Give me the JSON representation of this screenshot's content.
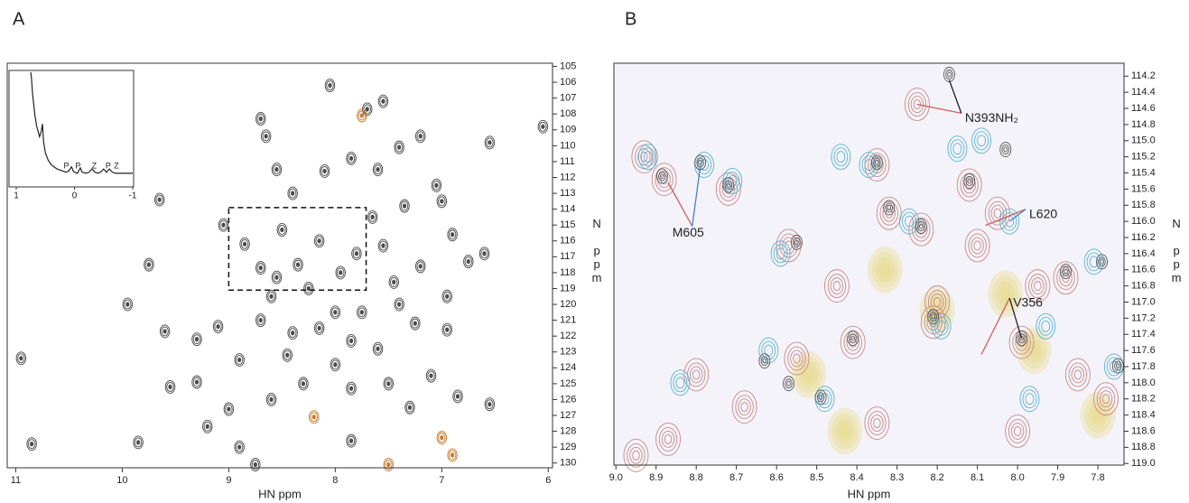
{
  "chart_data": [
    {
      "type": "contour",
      "panel_label": "A",
      "x_label": "HN ppm",
      "y_label": "N ppm",
      "xlim": [
        11.08,
        5.96
      ],
      "xticks": [
        11,
        10,
        9,
        8,
        7,
        6
      ],
      "ylim": [
        104.8,
        130.3
      ],
      "yticks": [
        105,
        106,
        107,
        108,
        109,
        110,
        111,
        112,
        113,
        114,
        115,
        116,
        117,
        118,
        119,
        120,
        121,
        122,
        123,
        124,
        125,
        126,
        127,
        128,
        129,
        130
      ],
      "series": [
        {
          "color": "#4a4a4a",
          "x": [
            10.85,
            10.95,
            9.65,
            9.75,
            9.95,
            9.6,
            9.55,
            9.3,
            9.3,
            9.1,
            9.0,
            9.2,
            8.9,
            9.85,
            9.05,
            8.85,
            8.7,
            8.6,
            8.45,
            8.3,
            8.15,
            8.0,
            7.85,
            7.75,
            7.6,
            7.45,
            7.25,
            7.1,
            6.85,
            6.95,
            6.75,
            6.9,
            7.0,
            6.6,
            6.95,
            7.3,
            6.55,
            7.7,
            8.05,
            8.7,
            8.65,
            8.55,
            8.4,
            8.1,
            7.85,
            7.6,
            7.4,
            7.2,
            7.05,
            7.35,
            6.55,
            8.15,
            8.35,
            8.25,
            7.95,
            7.8,
            8.5,
            8.55,
            7.55,
            7.65,
            7.4,
            7.2,
            8.7,
            8.4,
            8.0,
            7.85,
            8.9,
            8.6,
            7.5,
            6.05,
            7.55,
            7.85,
            8.75
          ],
          "values": [
            128.8,
            123.4,
            113.4,
            117.5,
            120,
            121.7,
            125.2,
            124.9,
            122.2,
            121.4,
            126.6,
            127.7,
            129,
            128.7,
            115,
            116.2,
            117.7,
            119.5,
            123.2,
            125,
            121.5,
            123.8,
            125.3,
            120.5,
            122.8,
            118.6,
            121.2,
            124.5,
            125.8,
            119.5,
            117.3,
            115.6,
            113.5,
            116.8,
            121.6,
            126.5,
            126.3,
            107.7,
            106.2,
            108.3,
            109.4,
            111.5,
            113,
            111.6,
            110.8,
            111.5,
            110.1,
            109.4,
            112.5,
            113.8,
            109.8,
            116,
            117.5,
            119,
            118,
            116.8,
            115.3,
            118.3,
            116.3,
            114.5,
            120,
            117.6,
            121,
            121.8,
            120.5,
            122.3,
            123.5,
            126,
            125,
            108.8,
            107.2,
            128.6,
            130.1
          ]
        },
        {
          "color": "#c8792a",
          "x": [
            7.75,
            8.2,
            7.0,
            6.9,
            7.5
          ],
          "values": [
            108.1,
            127.1,
            128.4,
            129.5,
            130.1
          ]
        }
      ],
      "zoom_box": {
        "x": [
          9.0,
          7.71
        ],
        "y": [
          113.9,
          119.1
        ]
      },
      "inset": {
        "xlim": [
          1.0,
          -1.0
        ],
        "xticks": [
          1,
          0,
          -1
        ],
        "ylim": [
          0,
          100
        ],
        "x": [
          0.75,
          0.74,
          0.73,
          0.72,
          0.7,
          0.68,
          0.65,
          0.6,
          0.57,
          0.55,
          0.53,
          0.5,
          0.45,
          0.4,
          0.35,
          0.3,
          0.25,
          0.2,
          0.15,
          0.1,
          0.05,
          0.02,
          0,
          -0.05,
          -0.1,
          -0.13,
          -0.2,
          -0.25,
          -0.3,
          -0.35,
          -0.4,
          -0.45,
          -0.5,
          -0.55,
          -0.6,
          -0.65,
          -0.7,
          -0.8,
          -0.9,
          -1.0
        ],
        "values": [
          100,
          95,
          88,
          80,
          70,
          60,
          50,
          40,
          45,
          52,
          35,
          25,
          18,
          14,
          12,
          10,
          9,
          8,
          7,
          8,
          12,
          8,
          7,
          6,
          11,
          7,
          6,
          7,
          10,
          7,
          6,
          7,
          10,
          7,
          10,
          7,
          6,
          6,
          6,
          6
        ],
        "peak_labels": [
          {
            "x": 0.14,
            "label": "P"
          },
          {
            "x": -0.06,
            "label": "P"
          },
          {
            "x": -0.34,
            "label": "Z"
          },
          {
            "x": -0.58,
            "label": "P"
          },
          {
            "x": -0.72,
            "label": "Z"
          }
        ]
      }
    },
    {
      "type": "contour",
      "panel_label": "B",
      "x_label": "HN ppm",
      "y_label": "N ppm",
      "xlim": [
        9.005,
        7.735
      ],
      "xticks": [
        {
          "value": 9.0,
          "label": "9.0"
        },
        8.9,
        8.8,
        8.7,
        8.6,
        8.5,
        8.4,
        8.3,
        8.2,
        8.1,
        {
          "value": 8.0,
          "label": "8.0"
        },
        7.9,
        7.8
      ],
      "ylim": [
        114.04,
        119.02
      ],
      "yticks": [
        114.2,
        114.4,
        114.6,
        114.8,
        {
          "value": 115,
          "label": "115.0"
        },
        115.2,
        115.4,
        115.6,
        115.8,
        {
          "value": 116,
          "label": "116.0"
        },
        116.2,
        116.4,
        116.6,
        116.8,
        {
          "value": 117,
          "label": "117.0"
        },
        117.2,
        117.4,
        117.6,
        117.8,
        {
          "value": 118,
          "label": "118.0"
        },
        118.2,
        118.4,
        118.6,
        118.8,
        {
          "value": 119,
          "label": "119.0"
        }
      ],
      "series": [
        {
          "color": "#e8d98a",
          "x": [
            8.33,
            8.2,
            8.03,
            7.96,
            7.8,
            8.52,
            8.43
          ],
          "values": [
            116.6,
            117.1,
            116.9,
            117.6,
            118.4,
            117.9,
            118.6
          ]
        },
        {
          "color": "#c98a8a",
          "x": [
            8.25,
            8.93,
            8.8,
            8.68,
            8.45,
            8.2,
            8.1,
            8.05,
            7.95,
            7.85,
            7.78,
            8.0,
            8.35,
            8.55,
            8.87,
            8.95,
            8.88,
            8.72,
            8.57,
            8.41,
            8.35,
            8.12,
            8.24,
            7.99,
            8.21,
            7.88,
            8.32
          ],
          "values": [
            114.55,
            115.2,
            117.9,
            118.3,
            116.8,
            117.0,
            116.3,
            115.9,
            116.8,
            117.9,
            118.2,
            118.6,
            118.5,
            117.7,
            118.7,
            118.9,
            115.48,
            115.6,
            116.3,
            117.5,
            115.3,
            115.55,
            116.1,
            117.5,
            117.25,
            116.7,
            115.9
          ]
        },
        {
          "color": "#5ab4d0",
          "x": [
            8.92,
            8.78,
            8.71,
            8.59,
            8.48,
            8.37,
            8.15,
            8.09,
            8.02,
            7.93,
            7.81,
            7.76,
            8.44,
            8.62,
            8.84,
            8.27,
            8.19,
            7.97
          ],
          "values": [
            115.2,
            115.3,
            115.5,
            116.4,
            118.2,
            115.3,
            115.1,
            115.0,
            116.0,
            117.3,
            116.5,
            117.8,
            115.2,
            117.6,
            118.0,
            116.0,
            117.3,
            118.2
          ]
        },
        {
          "color": "#555555",
          "x": [
            8.885,
            8.79,
            8.72,
            8.55,
            8.57,
            8.49,
            8.63,
            8.41,
            8.35,
            8.12,
            8.24,
            7.99,
            8.21,
            7.75,
            7.79,
            7.88,
            8.17,
            8.32,
            8.03
          ],
          "values": [
            115.44,
            115.27,
            115.55,
            116.26,
            118.01,
            118.18,
            117.73,
            117.45,
            115.27,
            115.5,
            116.06,
            117.45,
            117.18,
            117.79,
            116.5,
            116.62,
            114.18,
            115.83,
            115.11
          ]
        }
      ],
      "annotations": [
        {
          "text": "N393NH₂",
          "x": 8.14,
          "y": 114.66,
          "pointers": [
            {
              "x": 8.25,
              "y": 114.55,
              "color": "#d0605a"
            },
            {
              "x": 8.17,
              "y": 114.25,
              "color": "#222222"
            }
          ]
        },
        {
          "text": "M605",
          "x": 8.81,
          "y": 116.06,
          "pointers": [
            {
              "x": 8.87,
              "y": 115.52,
              "color": "#d0605a"
            },
            {
              "x": 8.79,
              "y": 115.32,
              "color": "#4a7fd0"
            }
          ]
        },
        {
          "text": "L620",
          "x": 7.98,
          "y": 115.85,
          "pointers": [
            {
              "x": 8.08,
              "y": 116.05,
              "color": "#d0605a"
            },
            {
              "x": 8.02,
              "y": 116.0,
              "color": "#4a7fd0"
            }
          ]
        },
        {
          "text": "V356",
          "x": 8.02,
          "y": 116.95,
          "pointers": [
            {
              "x": 8.09,
              "y": 117.65,
              "color": "#d0605a"
            },
            {
              "x": 7.99,
              "y": 117.45,
              "color": "#222222"
            }
          ]
        }
      ]
    }
  ]
}
